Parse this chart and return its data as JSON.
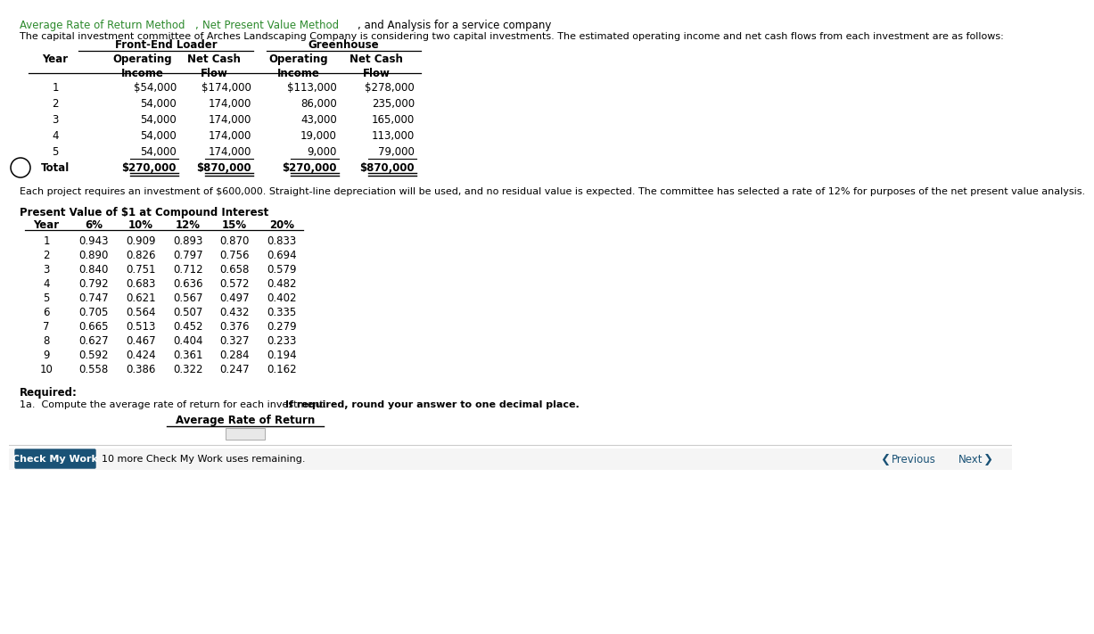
{
  "description": "The capital investment committee of Arches Landscaping Company is considering two capital investments. The estimated operating income and net cash flows from each investment are as follows:",
  "table1_rows": [
    [
      "1",
      "$54,000",
      "$174,000",
      "$113,000",
      "$278,000"
    ],
    [
      "2",
      "54,000",
      "174,000",
      "86,000",
      "235,000"
    ],
    [
      "3",
      "54,000",
      "174,000",
      "43,000",
      "165,000"
    ],
    [
      "4",
      "54,000",
      "174,000",
      "19,000",
      "113,000"
    ],
    [
      "5",
      "54,000",
      "174,000",
      "9,000",
      "79,000"
    ],
    [
      "Total",
      "$270,000",
      "$870,000",
      "$270,000",
      "$870,000"
    ]
  ],
  "note": "Each project requires an investment of $600,000. Straight-line depreciation will be used, and no residual value is expected. The committee has selected a rate of 12% for purposes of the net present value analysis.",
  "pv_title": "Present Value of $1 at Compound Interest",
  "pv_headers": [
    "Year",
    "6%",
    "10%",
    "12%",
    "15%",
    "20%"
  ],
  "pv_rows": [
    [
      "1",
      "0.943",
      "0.909",
      "0.893",
      "0.870",
      "0.833"
    ],
    [
      "2",
      "0.890",
      "0.826",
      "0.797",
      "0.756",
      "0.694"
    ],
    [
      "3",
      "0.840",
      "0.751",
      "0.712",
      "0.658",
      "0.579"
    ],
    [
      "4",
      "0.792",
      "0.683",
      "0.636",
      "0.572",
      "0.482"
    ],
    [
      "5",
      "0.747",
      "0.621",
      "0.567",
      "0.497",
      "0.402"
    ],
    [
      "6",
      "0.705",
      "0.564",
      "0.507",
      "0.432",
      "0.335"
    ],
    [
      "7",
      "0.665",
      "0.513",
      "0.452",
      "0.376",
      "0.279"
    ],
    [
      "8",
      "0.627",
      "0.467",
      "0.404",
      "0.327",
      "0.233"
    ],
    [
      "9",
      "0.592",
      "0.424",
      "0.361",
      "0.284",
      "0.194"
    ],
    [
      "10",
      "0.558",
      "0.386",
      "0.322",
      "0.247",
      "0.162"
    ]
  ],
  "required_label": "Required:",
  "req1a_normal": "1a.  Compute the average rate of return for each investment. ",
  "req1a_bold": "If required, round your answer to one decimal place.",
  "avg_rate_label": "Average Rate of Return",
  "check_btn_color": "#1a5276",
  "check_btn_text": "Check My Work",
  "check_note": "10 more Check My Work uses remaining.",
  "prev_text": "Previous",
  "next_text": "Next",
  "bg_color": "#ffffff",
  "green_color": "#2d8a2d",
  "title_green": "Average Rate of Return Method",
  "title_green2": "Net Present Value Method",
  "title_black": ", and Analysis for a service company"
}
